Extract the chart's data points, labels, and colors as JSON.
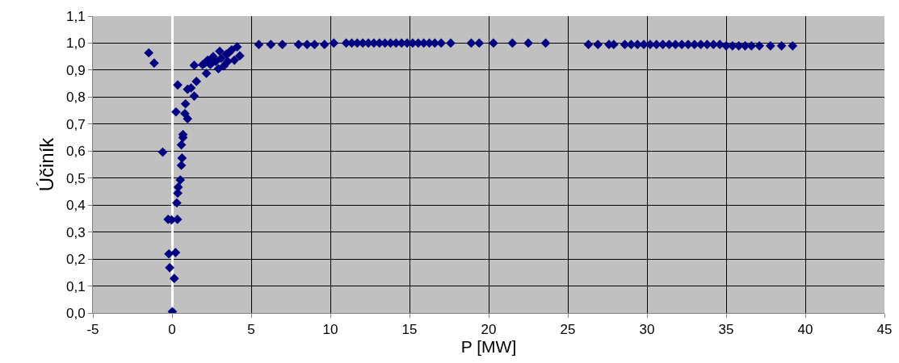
{
  "chart_data": {
    "type": "scatter",
    "xlabel": "P [MW]",
    "ylabel": "Účiník",
    "color": "#000080",
    "marker": "diamond",
    "grid": true,
    "xlim": [
      -5,
      45
    ],
    "xticks": [
      -5,
      0,
      5,
      10,
      15,
      20,
      25,
      30,
      35,
      40,
      45
    ],
    "ylim": [
      0,
      1.1
    ],
    "yticks": [
      {
        "value": 0,
        "label": "0,0"
      },
      {
        "value": 0.1,
        "label": "0,1"
      },
      {
        "value": 0.2,
        "label": "0,2"
      },
      {
        "value": 0.3,
        "label": "0,3"
      },
      {
        "value": 0.4,
        "label": "0,4"
      },
      {
        "value": 0.5,
        "label": "0,5"
      },
      {
        "value": 0.6,
        "label": "0,6"
      },
      {
        "value": 0.7,
        "label": "0,7"
      },
      {
        "value": 0.8,
        "label": "0,8"
      },
      {
        "value": 0.9,
        "label": "0,9"
      },
      {
        "value": 1.0,
        "label": "1,0"
      },
      {
        "value": 1.1,
        "label": "1,1"
      }
    ],
    "x": [
      -1.47,
      -1.13,
      -0.59,
      0.36,
      1.4,
      1.54,
      0.98,
      1.2,
      1.4,
      0.85,
      0.25,
      0.81,
      0.98,
      0.69,
      0.69,
      0.59,
      0.63,
      0.59,
      0.52,
      0.39,
      0.36,
      0.3,
      -0.25,
      -0.03,
      0.34,
      -0.2,
      0.22,
      -0.15,
      0.14,
      0.02,
      2.08,
      2.17,
      1.93,
      2.42,
      2.93,
      3.1,
      3.43,
      3.77,
      4.11,
      4.28,
      3.94,
      3.27,
      2.76,
      3.01,
      2.25,
      3.52,
      2.6,
      3.6,
      5.48,
      6.24,
      6.97,
      7.99,
      8.53,
      9.0,
      9.63,
      10.22,
      11.0,
      11.35,
      11.7,
      12.05,
      12.4,
      12.75,
      13.1,
      13.45,
      13.8,
      14.15,
      14.5,
      14.85,
      15.2,
      15.55,
      15.9,
      16.25,
      16.6,
      17.0,
      17.6,
      18.9,
      19.4,
      20.3,
      21.5,
      22.5,
      23.6,
      26.3,
      26.9,
      27.6,
      27.9,
      28.6,
      29.0,
      29.4,
      29.8,
      30.2,
      30.6,
      31.0,
      31.4,
      31.8,
      32.2,
      32.6,
      33.0,
      33.4,
      33.8,
      34.2,
      34.6,
      35.0,
      35.4,
      35.8,
      36.2,
      36.6,
      37.1,
      37.8,
      38.5,
      39.2
    ],
    "values": [
      0.964,
      0.926,
      0.596,
      0.845,
      0.918,
      0.858,
      0.829,
      0.834,
      0.804,
      0.775,
      0.745,
      0.739,
      0.72,
      0.661,
      0.65,
      0.623,
      0.574,
      0.547,
      0.493,
      0.466,
      0.444,
      0.408,
      0.347,
      0.345,
      0.347,
      0.219,
      0.224,
      0.168,
      0.128,
      0.005,
      0.926,
      0.888,
      0.92,
      0.921,
      0.905,
      0.943,
      0.959,
      0.975,
      0.986,
      0.953,
      0.937,
      0.915,
      0.932,
      0.97,
      0.937,
      0.932,
      0.95,
      0.965,
      0.995,
      0.995,
      0.995,
      0.995,
      0.995,
      0.995,
      0.995,
      1.0,
      1.0,
      1.0,
      1.0,
      1.0,
      1.0,
      1.0,
      1.0,
      1.0,
      1.0,
      1.0,
      1.0,
      1.0,
      1.0,
      1.0,
      1.0,
      1.0,
      1.0,
      1.0,
      1.0,
      1.0,
      1.0,
      1.0,
      1.0,
      1.0,
      1.0,
      0.995,
      0.995,
      0.995,
      0.995,
      0.995,
      0.995,
      0.995,
      0.995,
      0.995,
      0.995,
      0.995,
      0.995,
      0.995,
      0.995,
      0.995,
      0.995,
      0.995,
      0.995,
      0.995,
      0.995,
      0.99,
      0.99,
      0.99,
      0.99,
      0.99,
      0.99,
      0.99,
      0.99,
      0.99
    ]
  }
}
